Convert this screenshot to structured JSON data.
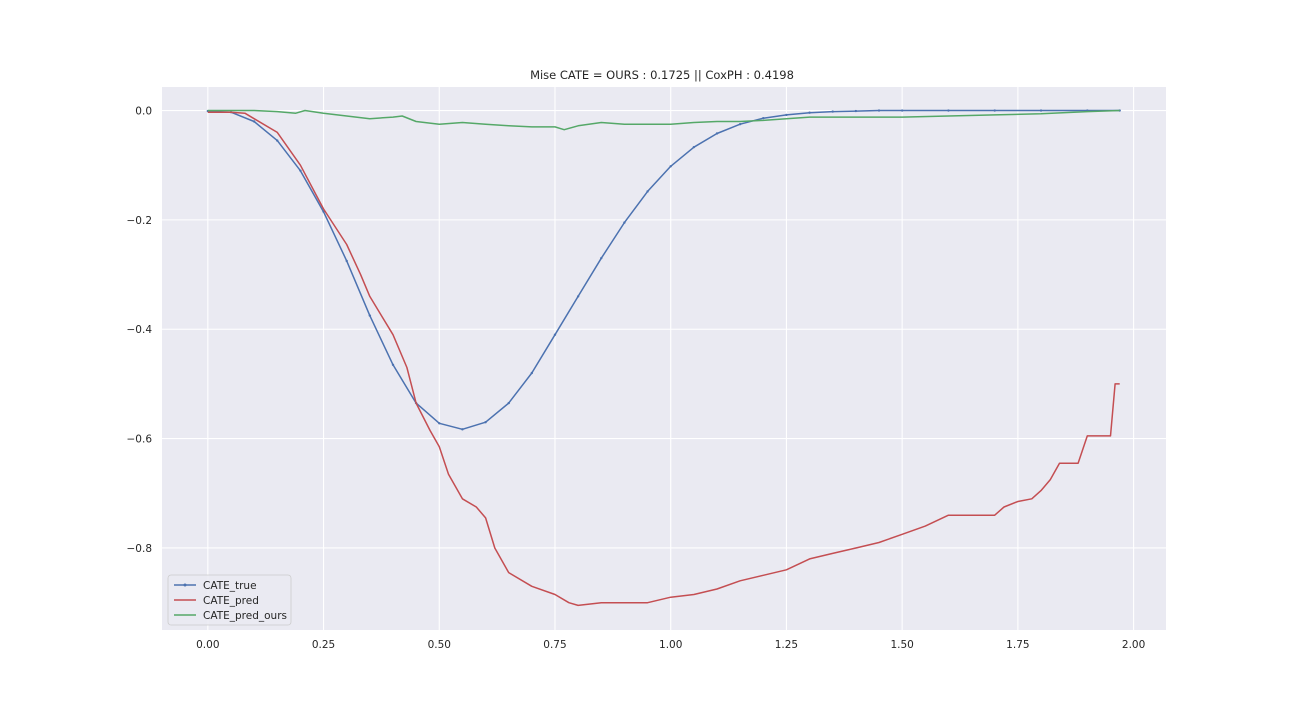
{
  "chart_data": {
    "type": "line",
    "title": "Mise CATE =  OURS : 0.1725 || CoxPH : 0.4198",
    "xlabel": "",
    "ylabel": "",
    "xlim": [
      -0.099,
      2.07
    ],
    "ylim": [
      -0.95,
      0.043
    ],
    "xticks": [
      0.0,
      0.25,
      0.5,
      0.75,
      1.0,
      1.25,
      1.5,
      1.75,
      2.0
    ],
    "xtick_labels": [
      "0.00",
      "0.25",
      "0.50",
      "0.75",
      "1.00",
      "1.25",
      "1.50",
      "1.75",
      "2.00"
    ],
    "yticks": [
      0.0,
      -0.2,
      -0.4,
      -0.6,
      -0.8
    ],
    "ytick_labels": [
      "0.0",
      "−0.2",
      "−0.4",
      "−0.6",
      "−0.8"
    ],
    "grid": true,
    "legend_position": "lower-left",
    "background_color": "#eaeaf2",
    "grid_color": "#ffffff",
    "series": [
      {
        "name": "CATE_true",
        "color": "#4c72b0",
        "marker": "point",
        "x": [
          0.0,
          0.05,
          0.1,
          0.15,
          0.2,
          0.25,
          0.3,
          0.35,
          0.4,
          0.45,
          0.5,
          0.55,
          0.6,
          0.65,
          0.7,
          0.75,
          0.8,
          0.85,
          0.9,
          0.95,
          1.0,
          1.05,
          1.1,
          1.15,
          1.2,
          1.25,
          1.3,
          1.35,
          1.4,
          1.45,
          1.5,
          1.6,
          1.7,
          1.8,
          1.9,
          1.97
        ],
        "y": [
          -0.001,
          -0.003,
          -0.02,
          -0.055,
          -0.11,
          -0.185,
          -0.275,
          -0.375,
          -0.465,
          -0.535,
          -0.572,
          -0.583,
          -0.57,
          -0.535,
          -0.48,
          -0.41,
          -0.34,
          -0.27,
          -0.205,
          -0.148,
          -0.102,
          -0.067,
          -0.042,
          -0.025,
          -0.014,
          -0.008,
          -0.004,
          -0.002,
          -0.001,
          0.0,
          0.0,
          0.0,
          0.0,
          0.0,
          0.0,
          0.0
        ]
      },
      {
        "name": "CATE_pred",
        "color": "#c44e52",
        "marker": "none",
        "x": [
          0.0,
          0.05,
          0.08,
          0.1,
          0.15,
          0.2,
          0.25,
          0.3,
          0.33,
          0.35,
          0.4,
          0.43,
          0.45,
          0.48,
          0.5,
          0.52,
          0.55,
          0.58,
          0.6,
          0.62,
          0.65,
          0.7,
          0.75,
          0.78,
          0.8,
          0.85,
          0.9,
          0.95,
          1.0,
          1.05,
          1.1,
          1.15,
          1.2,
          1.25,
          1.3,
          1.35,
          1.4,
          1.45,
          1.5,
          1.55,
          1.6,
          1.65,
          1.7,
          1.72,
          1.75,
          1.78,
          1.8,
          1.82,
          1.84,
          1.88,
          1.9,
          1.95,
          1.96,
          1.97
        ],
        "y": [
          -0.003,
          -0.003,
          -0.005,
          -0.015,
          -0.04,
          -0.1,
          -0.18,
          -0.245,
          -0.3,
          -0.34,
          -0.41,
          -0.47,
          -0.535,
          -0.585,
          -0.615,
          -0.665,
          -0.71,
          -0.725,
          -0.745,
          -0.8,
          -0.845,
          -0.87,
          -0.885,
          -0.9,
          -0.905,
          -0.9,
          -0.9,
          -0.9,
          -0.89,
          -0.885,
          -0.875,
          -0.86,
          -0.85,
          -0.84,
          -0.82,
          -0.81,
          -0.8,
          -0.79,
          -0.775,
          -0.76,
          -0.74,
          -0.74,
          -0.74,
          -0.725,
          -0.715,
          -0.71,
          -0.695,
          -0.675,
          -0.645,
          -0.645,
          -0.595,
          -0.595,
          -0.5,
          -0.5
        ]
      },
      {
        "name": "CATE_pred_ours",
        "color": "#55a868",
        "marker": "none",
        "x": [
          0.0,
          0.05,
          0.1,
          0.15,
          0.19,
          0.21,
          0.25,
          0.3,
          0.35,
          0.4,
          0.42,
          0.45,
          0.5,
          0.55,
          0.6,
          0.65,
          0.7,
          0.75,
          0.77,
          0.8,
          0.85,
          0.9,
          0.95,
          1.0,
          1.05,
          1.1,
          1.15,
          1.2,
          1.25,
          1.3,
          1.4,
          1.5,
          1.6,
          1.7,
          1.8,
          1.9,
          1.97
        ],
        "y": [
          0.0,
          0.0,
          0.0,
          -0.002,
          -0.005,
          0.0,
          -0.005,
          -0.01,
          -0.015,
          -0.012,
          -0.01,
          -0.02,
          -0.025,
          -0.022,
          -0.025,
          -0.028,
          -0.03,
          -0.03,
          -0.035,
          -0.028,
          -0.022,
          -0.025,
          -0.025,
          -0.025,
          -0.022,
          -0.02,
          -0.02,
          -0.018,
          -0.015,
          -0.012,
          -0.012,
          -0.012,
          -0.01,
          -0.008,
          -0.006,
          -0.002,
          0.0
        ]
      }
    ]
  }
}
